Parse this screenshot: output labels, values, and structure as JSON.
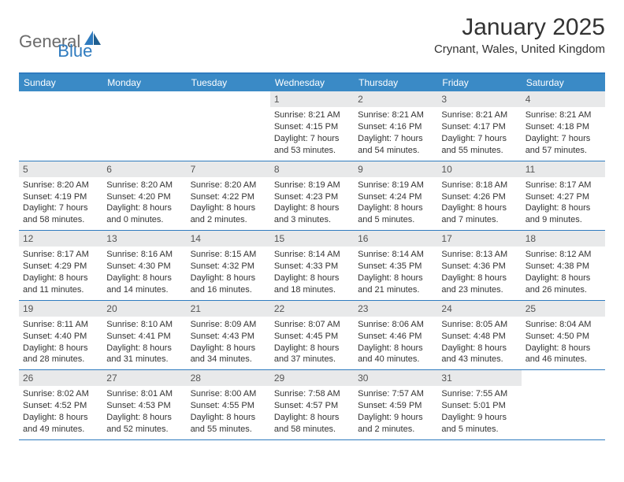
{
  "logo": {
    "part1": "General",
    "part2": "Blue"
  },
  "title": "January 2025",
  "location": "Crynant, Wales, United Kingdom",
  "colors": {
    "headerBar": "#3a8ac6",
    "borderBlue": "#2f7bbf",
    "numBg": "#e8e9ea",
    "text": "#333333",
    "logoGray": "#6b6b6b"
  },
  "dayHeaders": [
    "Sunday",
    "Monday",
    "Tuesday",
    "Wednesday",
    "Thursday",
    "Friday",
    "Saturday"
  ],
  "weeks": [
    [
      null,
      null,
      null,
      {
        "n": "1",
        "sr": "Sunrise: 8:21 AM",
        "ss": "Sunset: 4:15 PM",
        "dl1": "Daylight: 7 hours",
        "dl2": "and 53 minutes."
      },
      {
        "n": "2",
        "sr": "Sunrise: 8:21 AM",
        "ss": "Sunset: 4:16 PM",
        "dl1": "Daylight: 7 hours",
        "dl2": "and 54 minutes."
      },
      {
        "n": "3",
        "sr": "Sunrise: 8:21 AM",
        "ss": "Sunset: 4:17 PM",
        "dl1": "Daylight: 7 hours",
        "dl2": "and 55 minutes."
      },
      {
        "n": "4",
        "sr": "Sunrise: 8:21 AM",
        "ss": "Sunset: 4:18 PM",
        "dl1": "Daylight: 7 hours",
        "dl2": "and 57 minutes."
      }
    ],
    [
      {
        "n": "5",
        "sr": "Sunrise: 8:20 AM",
        "ss": "Sunset: 4:19 PM",
        "dl1": "Daylight: 7 hours",
        "dl2": "and 58 minutes."
      },
      {
        "n": "6",
        "sr": "Sunrise: 8:20 AM",
        "ss": "Sunset: 4:20 PM",
        "dl1": "Daylight: 8 hours",
        "dl2": "and 0 minutes."
      },
      {
        "n": "7",
        "sr": "Sunrise: 8:20 AM",
        "ss": "Sunset: 4:22 PM",
        "dl1": "Daylight: 8 hours",
        "dl2": "and 2 minutes."
      },
      {
        "n": "8",
        "sr": "Sunrise: 8:19 AM",
        "ss": "Sunset: 4:23 PM",
        "dl1": "Daylight: 8 hours",
        "dl2": "and 3 minutes."
      },
      {
        "n": "9",
        "sr": "Sunrise: 8:19 AM",
        "ss": "Sunset: 4:24 PM",
        "dl1": "Daylight: 8 hours",
        "dl2": "and 5 minutes."
      },
      {
        "n": "10",
        "sr": "Sunrise: 8:18 AM",
        "ss": "Sunset: 4:26 PM",
        "dl1": "Daylight: 8 hours",
        "dl2": "and 7 minutes."
      },
      {
        "n": "11",
        "sr": "Sunrise: 8:17 AM",
        "ss": "Sunset: 4:27 PM",
        "dl1": "Daylight: 8 hours",
        "dl2": "and 9 minutes."
      }
    ],
    [
      {
        "n": "12",
        "sr": "Sunrise: 8:17 AM",
        "ss": "Sunset: 4:29 PM",
        "dl1": "Daylight: 8 hours",
        "dl2": "and 11 minutes."
      },
      {
        "n": "13",
        "sr": "Sunrise: 8:16 AM",
        "ss": "Sunset: 4:30 PM",
        "dl1": "Daylight: 8 hours",
        "dl2": "and 14 minutes."
      },
      {
        "n": "14",
        "sr": "Sunrise: 8:15 AM",
        "ss": "Sunset: 4:32 PM",
        "dl1": "Daylight: 8 hours",
        "dl2": "and 16 minutes."
      },
      {
        "n": "15",
        "sr": "Sunrise: 8:14 AM",
        "ss": "Sunset: 4:33 PM",
        "dl1": "Daylight: 8 hours",
        "dl2": "and 18 minutes."
      },
      {
        "n": "16",
        "sr": "Sunrise: 8:14 AM",
        "ss": "Sunset: 4:35 PM",
        "dl1": "Daylight: 8 hours",
        "dl2": "and 21 minutes."
      },
      {
        "n": "17",
        "sr": "Sunrise: 8:13 AM",
        "ss": "Sunset: 4:36 PM",
        "dl1": "Daylight: 8 hours",
        "dl2": "and 23 minutes."
      },
      {
        "n": "18",
        "sr": "Sunrise: 8:12 AM",
        "ss": "Sunset: 4:38 PM",
        "dl1": "Daylight: 8 hours",
        "dl2": "and 26 minutes."
      }
    ],
    [
      {
        "n": "19",
        "sr": "Sunrise: 8:11 AM",
        "ss": "Sunset: 4:40 PM",
        "dl1": "Daylight: 8 hours",
        "dl2": "and 28 minutes."
      },
      {
        "n": "20",
        "sr": "Sunrise: 8:10 AM",
        "ss": "Sunset: 4:41 PM",
        "dl1": "Daylight: 8 hours",
        "dl2": "and 31 minutes."
      },
      {
        "n": "21",
        "sr": "Sunrise: 8:09 AM",
        "ss": "Sunset: 4:43 PM",
        "dl1": "Daylight: 8 hours",
        "dl2": "and 34 minutes."
      },
      {
        "n": "22",
        "sr": "Sunrise: 8:07 AM",
        "ss": "Sunset: 4:45 PM",
        "dl1": "Daylight: 8 hours",
        "dl2": "and 37 minutes."
      },
      {
        "n": "23",
        "sr": "Sunrise: 8:06 AM",
        "ss": "Sunset: 4:46 PM",
        "dl1": "Daylight: 8 hours",
        "dl2": "and 40 minutes."
      },
      {
        "n": "24",
        "sr": "Sunrise: 8:05 AM",
        "ss": "Sunset: 4:48 PM",
        "dl1": "Daylight: 8 hours",
        "dl2": "and 43 minutes."
      },
      {
        "n": "25",
        "sr": "Sunrise: 8:04 AM",
        "ss": "Sunset: 4:50 PM",
        "dl1": "Daylight: 8 hours",
        "dl2": "and 46 minutes."
      }
    ],
    [
      {
        "n": "26",
        "sr": "Sunrise: 8:02 AM",
        "ss": "Sunset: 4:52 PM",
        "dl1": "Daylight: 8 hours",
        "dl2": "and 49 minutes."
      },
      {
        "n": "27",
        "sr": "Sunrise: 8:01 AM",
        "ss": "Sunset: 4:53 PM",
        "dl1": "Daylight: 8 hours",
        "dl2": "and 52 minutes."
      },
      {
        "n": "28",
        "sr": "Sunrise: 8:00 AM",
        "ss": "Sunset: 4:55 PM",
        "dl1": "Daylight: 8 hours",
        "dl2": "and 55 minutes."
      },
      {
        "n": "29",
        "sr": "Sunrise: 7:58 AM",
        "ss": "Sunset: 4:57 PM",
        "dl1": "Daylight: 8 hours",
        "dl2": "and 58 minutes."
      },
      {
        "n": "30",
        "sr": "Sunrise: 7:57 AM",
        "ss": "Sunset: 4:59 PM",
        "dl1": "Daylight: 9 hours",
        "dl2": "and 2 minutes."
      },
      {
        "n": "31",
        "sr": "Sunrise: 7:55 AM",
        "ss": "Sunset: 5:01 PM",
        "dl1": "Daylight: 9 hours",
        "dl2": "and 5 minutes."
      },
      null
    ]
  ]
}
